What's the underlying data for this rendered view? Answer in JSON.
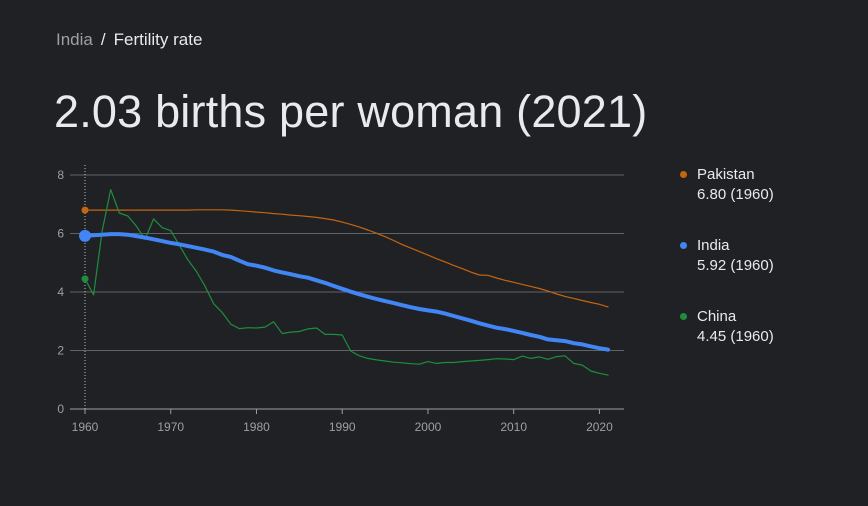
{
  "breadcrumb": {
    "parent": "India",
    "separator": "/",
    "current": "Fertility rate"
  },
  "headline": "2.03 births per woman (2021)",
  "legend": [
    {
      "name": "Pakistan",
      "value": "6.80 (1960)",
      "color": "#c5650f"
    },
    {
      "name": "India",
      "value": "5.92 (1960)",
      "color": "#4285f4"
    },
    {
      "name": "China",
      "value": "4.45 (1960)",
      "color": "#1e8e3e"
    }
  ],
  "chart_data": {
    "type": "line",
    "title": "2.03 births per woman (2021)",
    "xlabel": "",
    "ylabel": "",
    "xlim": [
      1960,
      2021
    ],
    "ylim": [
      0,
      8
    ],
    "xticks": [
      1960,
      1970,
      1980,
      1990,
      2000,
      2010,
      2020
    ],
    "yticks": [
      0,
      2,
      4,
      6,
      8
    ],
    "grid": true,
    "hover_year": 1960,
    "x": [
      1960,
      1961,
      1962,
      1963,
      1964,
      1965,
      1966,
      1967,
      1968,
      1969,
      1970,
      1971,
      1972,
      1973,
      1974,
      1975,
      1976,
      1977,
      1978,
      1979,
      1980,
      1981,
      1982,
      1983,
      1984,
      1985,
      1986,
      1987,
      1988,
      1989,
      1990,
      1991,
      1992,
      1993,
      1994,
      1995,
      1996,
      1997,
      1998,
      1999,
      2000,
      2001,
      2002,
      2003,
      2004,
      2005,
      2006,
      2007,
      2008,
      2009,
      2010,
      2011,
      2012,
      2013,
      2014,
      2015,
      2016,
      2017,
      2018,
      2019,
      2020,
      2021
    ],
    "series": [
      {
        "name": "Pakistan",
        "color": "#c5650f",
        "values": [
          6.8,
          6.8,
          6.8,
          6.8,
          6.8,
          6.8,
          6.8,
          6.8,
          6.8,
          6.8,
          6.8,
          6.8,
          6.8,
          6.81,
          6.81,
          6.81,
          6.81,
          6.8,
          6.78,
          6.76,
          6.73,
          6.71,
          6.68,
          6.66,
          6.63,
          6.61,
          6.58,
          6.55,
          6.51,
          6.46,
          6.39,
          6.31,
          6.22,
          6.12,
          6.01,
          5.89,
          5.76,
          5.62,
          5.5,
          5.38,
          5.26,
          5.14,
          5.03,
          4.91,
          4.8,
          4.68,
          4.58,
          4.57,
          4.48,
          4.4,
          4.33,
          4.26,
          4.19,
          4.12,
          4.03,
          3.93,
          3.85,
          3.78,
          3.71,
          3.64,
          3.58,
          3.49
        ]
      },
      {
        "name": "India",
        "color": "#4285f4",
        "values": [
          5.92,
          5.94,
          5.96,
          5.98,
          5.98,
          5.96,
          5.91,
          5.86,
          5.8,
          5.74,
          5.68,
          5.63,
          5.57,
          5.51,
          5.45,
          5.38,
          5.27,
          5.2,
          5.07,
          4.95,
          4.9,
          4.83,
          4.74,
          4.67,
          4.61,
          4.54,
          4.49,
          4.4,
          4.31,
          4.21,
          4.11,
          4.01,
          3.92,
          3.84,
          3.76,
          3.69,
          3.62,
          3.55,
          3.48,
          3.42,
          3.37,
          3.33,
          3.26,
          3.18,
          3.1,
          3.02,
          2.93,
          2.85,
          2.78,
          2.73,
          2.67,
          2.6,
          2.53,
          2.47,
          2.38,
          2.35,
          2.32,
          2.25,
          2.21,
          2.14,
          2.08,
          2.03
        ]
      },
      {
        "name": "China",
        "color": "#1e8e3e",
        "values": [
          4.45,
          3.9,
          6.08,
          7.5,
          6.7,
          6.6,
          6.25,
          5.8,
          6.5,
          6.2,
          6.1,
          5.6,
          5.1,
          4.7,
          4.2,
          3.6,
          3.3,
          2.9,
          2.75,
          2.78,
          2.77,
          2.8,
          2.98,
          2.58,
          2.63,
          2.65,
          2.74,
          2.77,
          2.55,
          2.55,
          2.53,
          1.98,
          1.82,
          1.73,
          1.68,
          1.64,
          1.6,
          1.58,
          1.55,
          1.53,
          1.62,
          1.56,
          1.59,
          1.59,
          1.62,
          1.64,
          1.66,
          1.69,
          1.72,
          1.71,
          1.69,
          1.81,
          1.73,
          1.78,
          1.7,
          1.79,
          1.82,
          1.56,
          1.5,
          1.3,
          1.22,
          1.16
        ]
      }
    ]
  }
}
